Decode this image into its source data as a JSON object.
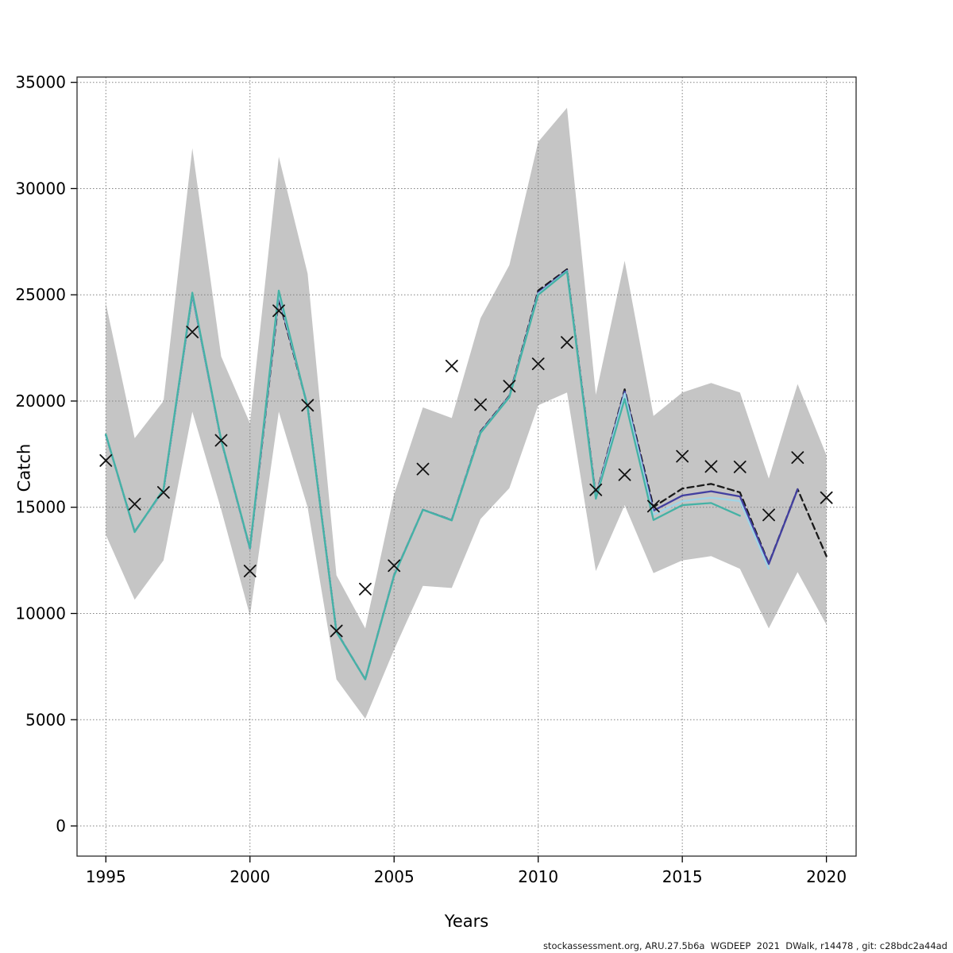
{
  "figure": {
    "caption": "stockassessment.org, ARU.27.5b6a  WGDEEP  2021  DWalk, r14478 , git: c28bdc2a44ad"
  },
  "chart_data": {
    "type": "line",
    "title": "",
    "xlabel": "Years",
    "ylabel": "Catch",
    "xlim": [
      1994,
      2021.03
    ],
    "ylim": [
      -1420,
      35250
    ],
    "x_ticks": [
      1995,
      2000,
      2005,
      2010,
      2015,
      2020
    ],
    "y_ticks": [
      0,
      5000,
      10000,
      15000,
      20000,
      25000,
      30000,
      35000
    ],
    "grid": true,
    "legend": "none",
    "background": "#ffffff",
    "grid_color": "#808080",
    "box_color": "#2b2b2b",
    "x": [
      1995,
      1996,
      1997,
      1998,
      1999,
      2000,
      2001,
      2002,
      2003,
      2004,
      2005,
      2006,
      2007,
      2008,
      2009,
      2010,
      2011,
      2012,
      2013,
      2014,
      2015,
      2016,
      2017,
      2018,
      2019,
      2020
    ],
    "band": {
      "name": "confidence-band",
      "color": "#c5c5c5",
      "upper": [
        24600,
        18250,
        20000,
        31900,
        22100,
        18950,
        31500,
        26000,
        11800,
        9300,
        15600,
        19700,
        19200,
        23900,
        26400,
        32200,
        33800,
        20300,
        26600,
        19300,
        20400,
        20850,
        20400,
        16350,
        20800,
        17450
      ],
      "lower": [
        13700,
        10650,
        12500,
        19500,
        14900,
        9900,
        19500,
        15000,
        6900,
        5050,
        8300,
        11300,
        11200,
        14450,
        15900,
        19800,
        20400,
        12000,
        15100,
        11900,
        12500,
        12700,
        12100,
        9300,
        11950,
        9470
      ]
    },
    "series": [
      {
        "name": "fit-current",
        "style": "dashed",
        "color": "#1a1a1a",
        "values": [
          18400,
          13850,
          15800,
          25050,
          18150,
          13050,
          24800,
          19750,
          9150,
          6900,
          11800,
          14880,
          14400,
          18570,
          20250,
          25200,
          26200,
          15520,
          20550,
          15010,
          15880,
          16100,
          15700,
          12350,
          15850,
          12700
        ]
      },
      {
        "name": "retro-peel-2019",
        "style": "solid",
        "color": "#423fa0",
        "values": [
          18400,
          13850,
          15800,
          25000,
          18150,
          13050,
          24950,
          19750,
          9150,
          6900,
          11800,
          14880,
          14400,
          18540,
          20220,
          25100,
          26150,
          15480,
          20450,
          14840,
          15550,
          15750,
          15510,
          12330,
          15845
        ]
      },
      {
        "name": "retro-peel-2018",
        "style": "solid",
        "color": "#9fd4e6",
        "values": [
          18410,
          13840,
          15810,
          25060,
          18160,
          13060,
          25050,
          19720,
          9140,
          6900,
          11790,
          14870,
          14390,
          18520,
          20200,
          25050,
          26120,
          15440,
          20350,
          14650,
          15290,
          15450,
          15290,
          12110
        ]
      },
      {
        "name": "retro-peel-2017",
        "style": "solid",
        "color": "#45b2a5",
        "values": [
          18430,
          13830,
          15850,
          25100,
          18180,
          13080,
          25200,
          19700,
          9130,
          6900,
          11780,
          14880,
          14380,
          18500,
          20180,
          25000,
          26100,
          15400,
          20100,
          14400,
          15100,
          15200,
          14600
        ]
      }
    ],
    "observations": {
      "name": "observed-catch",
      "marker": "x",
      "color": "#111111",
      "values": [
        17200,
        15150,
        15700,
        23250,
        18150,
        12000,
        24250,
        19800,
        9180,
        11150,
        12250,
        16800,
        21650,
        19830,
        20700,
        21750,
        22760,
        15820,
        16530,
        15050,
        17400,
        16920,
        16900,
        14640,
        17340,
        15450
      ]
    }
  }
}
